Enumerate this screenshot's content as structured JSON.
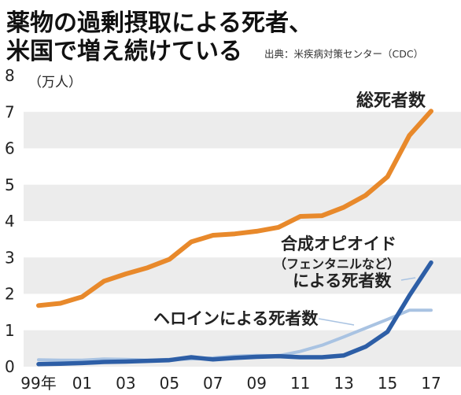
{
  "title": {
    "line1": "薬物の過剰摂取による死者、",
    "line2": "米国で増え続けている"
  },
  "source": "出典：米疾病対策センター（CDC）",
  "chart_data": {
    "type": "line",
    "unit": "（万人）",
    "x": [
      "99年",
      "00",
      "01",
      "02",
      "03",
      "04",
      "05",
      "06",
      "07",
      "08",
      "09",
      "10",
      "11",
      "12",
      "13",
      "14",
      "15",
      "16",
      "17"
    ],
    "x_tick_labels": [
      "99年",
      "01",
      "03",
      "05",
      "07",
      "09",
      "11",
      "13",
      "15",
      "17"
    ],
    "ylim": [
      0,
      8
    ],
    "y_ticks": [
      0,
      1,
      2,
      3,
      4,
      5,
      6,
      7,
      8
    ],
    "grid_bands": true,
    "series": [
      {
        "name": "総死者数",
        "color": "#e8892b",
        "values": [
          1.68,
          1.74,
          1.92,
          2.35,
          2.55,
          2.72,
          2.95,
          3.43,
          3.61,
          3.65,
          3.72,
          3.83,
          4.13,
          4.15,
          4.38,
          4.71,
          5.22,
          6.35,
          7.02
        ]
      },
      {
        "name": "合成オピオイド",
        "name_sub": "（フェンタニルなど）",
        "name_tail": "による死者数",
        "color": "#2d5ea6",
        "values": [
          0.07,
          0.08,
          0.1,
          0.13,
          0.14,
          0.16,
          0.18,
          0.26,
          0.2,
          0.24,
          0.27,
          0.29,
          0.26,
          0.26,
          0.31,
          0.55,
          0.96,
          1.95,
          2.86
        ]
      },
      {
        "name": "ヘロインによる死者数",
        "color": "#a9c3e2",
        "values": [
          0.19,
          0.18,
          0.18,
          0.21,
          0.2,
          0.18,
          0.2,
          0.21,
          0.24,
          0.29,
          0.31,
          0.3,
          0.42,
          0.59,
          0.82,
          1.06,
          1.3,
          1.55,
          1.55
        ]
      }
    ]
  }
}
